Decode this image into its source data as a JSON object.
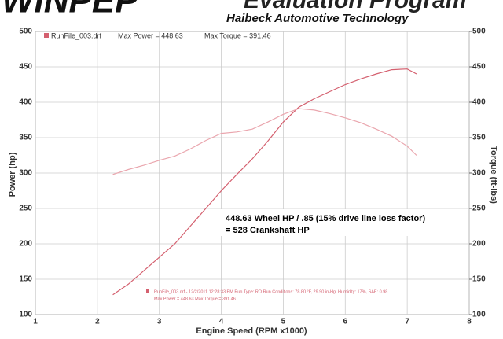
{
  "chart_data": {
    "type": "line",
    "logo": "WINPEP",
    "title": "Evaluation Program",
    "subtitle": "Haibeck Automotive Technology",
    "x_label": "Engine Speed (RPM x1000)",
    "y_label": "Power (hp)",
    "y2_label": "Torque (ft-lbs)",
    "legend_title": "RunFile_003.drf",
    "annotations": [
      "448.63 Wheel HP / .85 (15% drive line loss factor)",
      "= 528 Crankshaft HP"
    ],
    "footer": [
      "RunFile_003.drf - 12/2/2011 12:28:33 PM  Run Type: RO  Run Conditions: 78.80 °F, 29.90 in-Hg, Humidity: 17%, SAE: 0.98",
      "Max Power = 448.63  Max Torque = 391.46"
    ],
    "x": [
      2.25,
      2.5,
      2.75,
      3,
      3.25,
      3.5,
      3.75,
      4,
      4.25,
      4.5,
      4.75,
      5,
      5.25,
      5.5,
      5.75,
      6,
      6.25,
      6.5,
      6.75,
      7,
      7.15
    ],
    "series": [
      {
        "name": "Max Power = 448.63",
        "color": "#d4606f",
        "values": [
          128,
          143,
          162,
          181,
          200,
          225,
          250,
          275,
          298,
          320,
          345,
          372,
          393,
          405,
          415,
          425,
          433,
          440,
          446,
          447,
          440
        ]
      },
      {
        "name": "Max Torque = 391.46",
        "color": "#eaa6ae",
        "axis": "y2",
        "values": [
          298,
          305,
          311,
          318,
          324,
          334,
          346,
          356,
          358,
          362,
          372,
          383,
          391,
          389,
          384,
          378,
          371,
          362,
          352,
          338,
          325
        ]
      }
    ],
    "xlim": [
      1,
      8
    ],
    "xticks": [
      1,
      2,
      3,
      4,
      5,
      6,
      7,
      8
    ],
    "ylim": [
      100,
      500
    ],
    "yticks": [
      100,
      150,
      200,
      250,
      300,
      350,
      400,
      450,
      500
    ],
    "y2lim": [
      100,
      500
    ],
    "y2ticks": [
      100,
      150,
      200,
      250,
      300,
      350,
      400,
      450,
      500
    ],
    "grid": true
  }
}
